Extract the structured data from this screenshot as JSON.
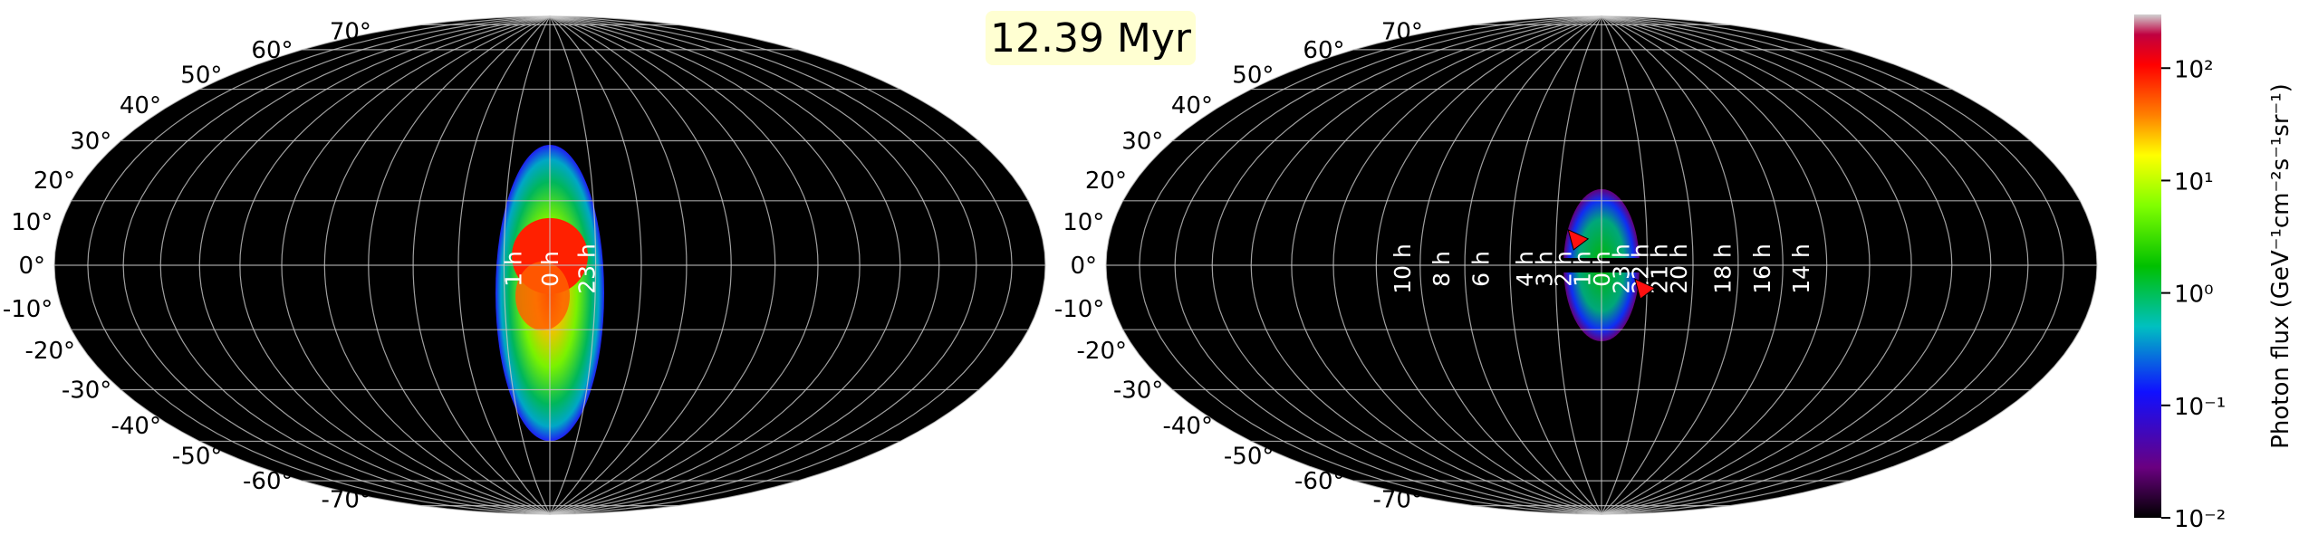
{
  "chart_data": [
    {
      "type": "heatmap",
      "projection": "hammer-aitoff",
      "panel": "left",
      "title": "",
      "lat_ticks": [
        "70°",
        "60°",
        "50°",
        "40°",
        "30°",
        "20°",
        "10°",
        "0°",
        "-10°",
        "-20°",
        "-30°",
        "-40°",
        "-50°",
        "-60°",
        "-70°"
      ],
      "lon_ticks": [
        "1 h",
        "0 h",
        "23 h"
      ],
      "emission": {
        "center_lon_deg": 0,
        "extent_lat_deg": [
          -60,
          40
        ],
        "peak_flux": 100
      }
    },
    {
      "type": "heatmap",
      "projection": "hammer-aitoff",
      "panel": "right",
      "title": "",
      "lat_ticks": [
        "70°",
        "60°",
        "50°",
        "40°",
        "30°",
        "20°",
        "10°",
        "0°",
        "-10°",
        "-20°",
        "-30°",
        "-40°",
        "-50°",
        "-60°",
        "-70°"
      ],
      "lon_ticks": [
        "10 h",
        "8 h",
        "6 h",
        "4 h",
        "3 h",
        "2 h",
        "1 h",
        "0 h",
        "23 h",
        "22 h",
        "21 h",
        "20 h",
        "18 h",
        "16 h",
        "14 h"
      ],
      "emission": {
        "center_lon_deg": 0,
        "extent_lat_deg": [
          -25,
          25
        ],
        "peak_flux": 10
      },
      "markers": [
        {
          "type": "red-arrow",
          "lat": 8,
          "lon": 8
        },
        {
          "type": "red-arrow",
          "lat": -8,
          "lon": -14
        }
      ]
    }
  ],
  "time_label": "12.39 Myr",
  "colorbar": {
    "label": "Photon flux (GeV⁻¹cm⁻²s⁻¹sr⁻¹)",
    "scale": "log",
    "ticks": [
      "10²",
      "10¹",
      "10⁰",
      "10⁻¹",
      "10⁻²"
    ],
    "range": [
      0.01,
      300
    ],
    "colormap": [
      "#000000",
      "#6a0080",
      "#1010ff",
      "#00c0c0",
      "#00c000",
      "#80ff00",
      "#ffff00",
      "#ff8000",
      "#ff0000",
      "#d0d0d0"
    ]
  }
}
